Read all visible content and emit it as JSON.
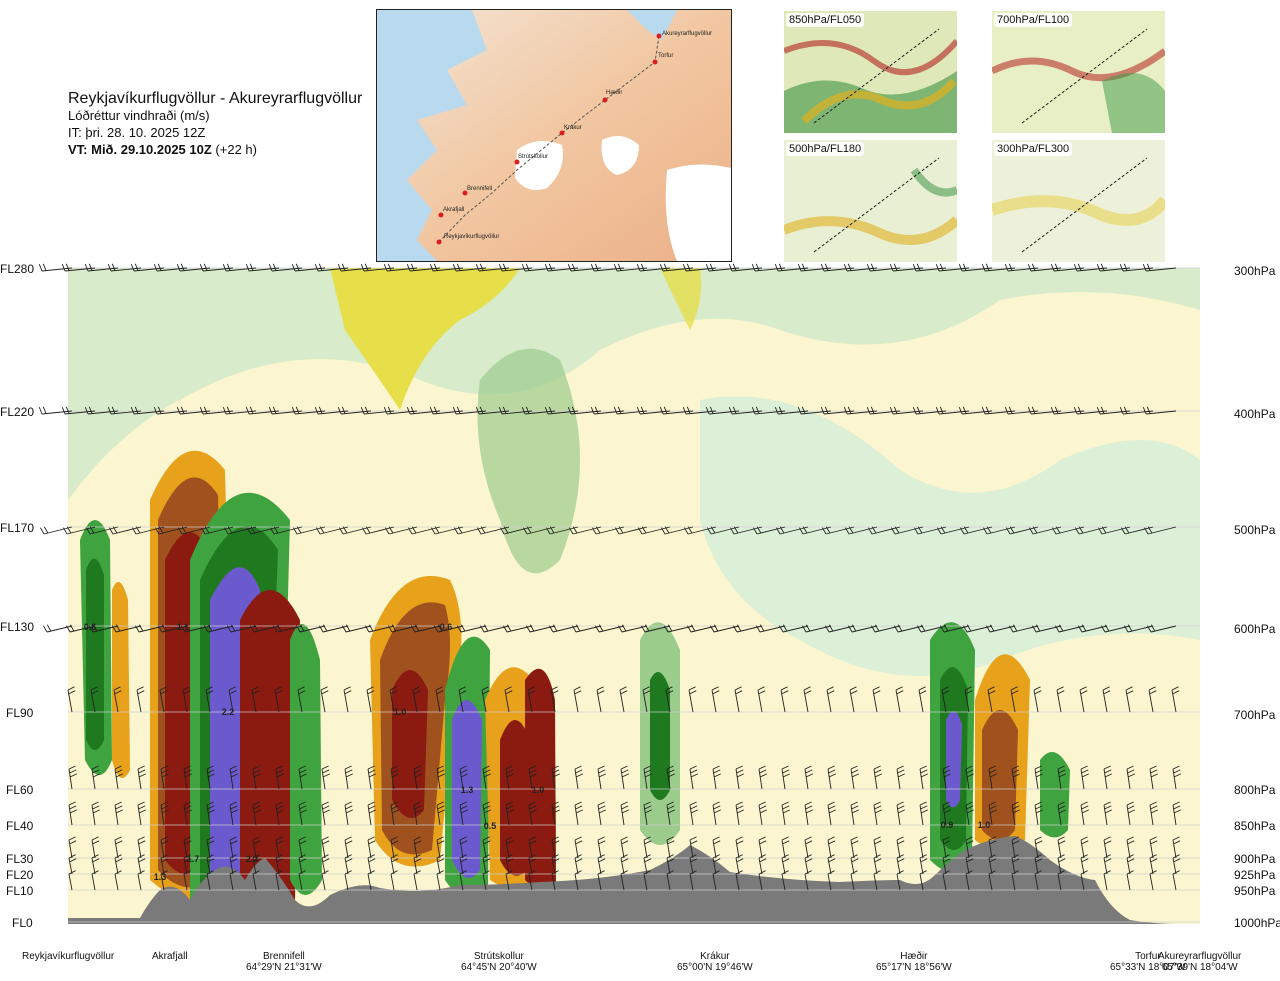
{
  "title": {
    "route": "Reykjavíkurflugvöllur - Akureyrarflugvöllur",
    "variable": "Lóðréttur vindhraði (m/s)",
    "it": "IT: þri. 28. 10. 2025 12Z",
    "vt_bold": "VT: Mið. 29.10.2025 10Z",
    "vt_suffix": "(+22 h)"
  },
  "route_map": {
    "waypoints": [
      "Akureyrarflugvöllur",
      "Torfur",
      "Hæðir",
      "Krákur",
      "Strútskollur",
      "Brennifell",
      "Akrafjall",
      "Reykjavíkurflugvöllur"
    ]
  },
  "panels": [
    {
      "label": "850hPa/FL050"
    },
    {
      "label": "700hPa/FL100"
    },
    {
      "label": "500hPa/FL180"
    },
    {
      "label": "300hPa/FL300"
    }
  ],
  "axis": {
    "flight_levels": [
      "FL280",
      "FL220",
      "FL170",
      "FL130",
      "FL90",
      "FL60",
      "FL40",
      "FL30",
      "FL20",
      "FL10",
      "FL0"
    ],
    "pressure_levels": [
      "300hPa",
      "400hPa",
      "500hPa",
      "600hPa",
      "700hPa",
      "800hPa",
      "850hPa",
      "900hPa",
      "925hPa",
      "950hPa",
      "1000hPa"
    ]
  },
  "places": [
    {
      "name": "Reykjavíkurflugvöllur",
      "coord": ""
    },
    {
      "name": "Akrafjall",
      "coord": ""
    },
    {
      "name": "Brennifell",
      "coord": "64°29'N 21°31'W"
    },
    {
      "name": "Strútskollur",
      "coord": "64°45'N 20°40'W"
    },
    {
      "name": "Krákur",
      "coord": "65°00'N 19°46'W"
    },
    {
      "name": "Hæðir",
      "coord": "65°17'N 18°56'W"
    },
    {
      "name": "Torfur",
      "coord": "65°33'N 18°07'W"
    },
    {
      "name": "Akureyrarflugvöllur",
      "coord": "65°39'N 18°04'W"
    }
  ],
  "colors": {
    "strong_down": "#6a5acd",
    "down_dark": "#1f7a1f",
    "down_mid": "#3fa33f",
    "down_light": "#9ccc8c",
    "weak_down": "#cfe8c9",
    "neutral": "#fbf6cf",
    "weak_up": "#f6eca6",
    "up_light": "#f2d53a",
    "up_mid": "#e7a11b",
    "up_dark": "#a0521e",
    "strong_up": "#8b1a10",
    "terrain": "#7a7a7a"
  },
  "chart_data": {
    "type": "heatmap",
    "title": "Lóðréttur vindhraði (m/s)",
    "xlabel": "",
    "ylabel": "",
    "y_levels_fl": [
      0,
      10,
      20,
      30,
      40,
      60,
      90,
      130,
      170,
      220,
      280
    ],
    "y_levels_hpa": [
      1000,
      950,
      925,
      900,
      850,
      800,
      700,
      600,
      500,
      400,
      300
    ],
    "x_waypoints": [
      "Reykjavíkurflugvöllur",
      "Akrafjall",
      "Brennifell",
      "Strútskollur",
      "Krákur",
      "Hæðir",
      "Torfur",
      "Akureyrarflugvöllur"
    ],
    "value_labels": [
      {
        "text": "0.6",
        "place": "between Reykjavíkurflugvöllur and Akrafjall",
        "fl": 130
      },
      {
        "text": "1.1",
        "place": "near Akrafjall",
        "fl": 130
      },
      {
        "text": "2.2",
        "place": "near Brennifell",
        "fl": 90
      },
      {
        "text": "1.7",
        "place": "near Brennifell",
        "fl": 30
      },
      {
        "text": "2.2",
        "place": "near Brennifell",
        "fl": 30
      },
      {
        "text": "1.3",
        "place": "near Akrafjall",
        "fl": 20
      },
      {
        "text": "0.6",
        "place": "before Strútskollur",
        "fl": 130
      },
      {
        "text": "1.0",
        "place": "before Strútskollur",
        "fl": 90
      },
      {
        "text": "1.3",
        "place": "near Strútskollur",
        "fl": 60
      },
      {
        "text": "0.5",
        "place": "near Strútskollur",
        "fl": 40
      },
      {
        "text": "1.0",
        "place": "after Strútskollur",
        "fl": 60
      },
      {
        "text": "0.9",
        "place": "after Hæðir",
        "fl": 40
      },
      {
        "text": "1.0",
        "place": "after Hæðir",
        "fl": 40
      }
    ]
  }
}
